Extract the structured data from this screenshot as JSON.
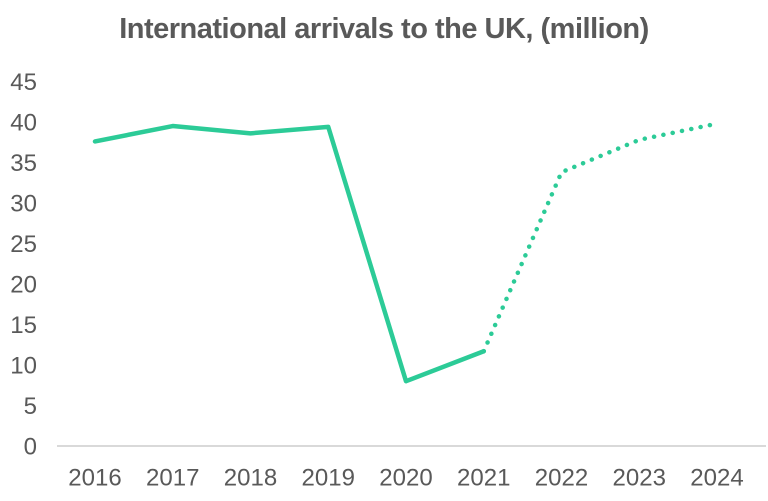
{
  "page": {
    "background": "#ffffff"
  },
  "chart_data": {
    "type": "line",
    "title": "International arrivals to the UK, (million)",
    "xlabel": "",
    "ylabel": "",
    "x": [
      2016,
      2017,
      2018,
      2019,
      2020,
      2021,
      2022,
      2023,
      2024
    ],
    "x_tick_labels": [
      "2016",
      "2017",
      "2018",
      "2019",
      "2020",
      "2021",
      "2022",
      "2023",
      "2024"
    ],
    "y_ticks": [
      0,
      5,
      10,
      15,
      20,
      25,
      30,
      35,
      40,
      45
    ],
    "ylim": [
      0,
      45
    ],
    "grid": false,
    "legend": "none",
    "series": [
      {
        "name": "solid-actual-2016-2021",
        "style": "solid",
        "x": [
          2016,
          2017,
          2018,
          2019,
          2020,
          2021
        ],
        "values": [
          37.6,
          39.5,
          38.6,
          39.4,
          8.0,
          11.7
        ]
      },
      {
        "name": "dotted-projection-2021-2024",
        "style": "dotted",
        "x": [
          2021,
          2022,
          2023,
          2024
        ],
        "values": [
          11.7,
          33.8,
          37.8,
          39.8
        ]
      }
    ],
    "colors": {
      "line": "#2ccb97",
      "axis_line": "#d9d9d9",
      "text": "#595959",
      "title_text": "#595959"
    }
  }
}
